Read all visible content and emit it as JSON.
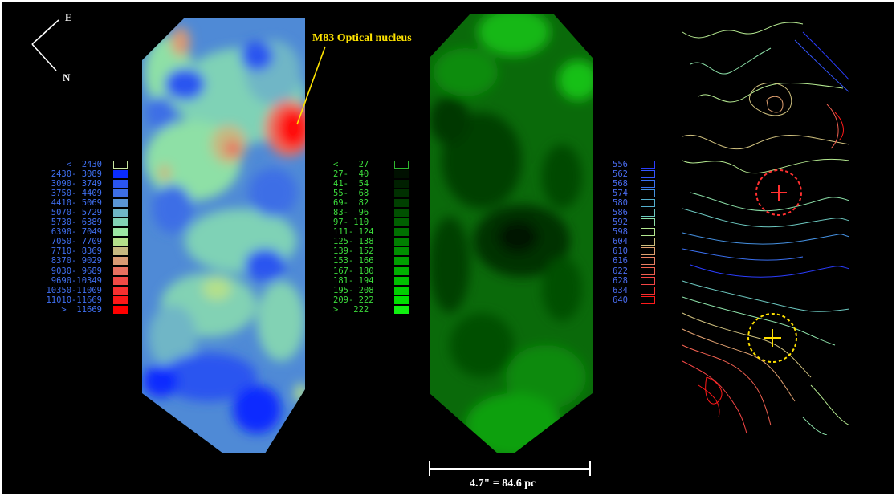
{
  "annotation": "M83 Optical nucleus",
  "compass": {
    "east": "E",
    "north": "N"
  },
  "scalebar": {
    "label": "4.7\" = 84.6 pc"
  },
  "velocity_legend": [
    {
      "label": "<  2430",
      "color": "#000000",
      "border": "#c8e6a0"
    },
    {
      "label": "2430- 3089",
      "color": "#0a2cff"
    },
    {
      "label": "3090- 3749",
      "color": "#2a55f0"
    },
    {
      "label": "3750- 4409",
      "color": "#3d6ee6"
    },
    {
      "label": "4410- 5069",
      "color": "#5a96d6"
    },
    {
      "label": "5070- 5729",
      "color": "#6fb6c6"
    },
    {
      "label": "5730- 6389",
      "color": "#82d2b4"
    },
    {
      "label": "6390- 7049",
      "color": "#9be6a2"
    },
    {
      "label": "7050- 7709",
      "color": "#b4e08a"
    },
    {
      "label": "7710- 8369",
      "color": "#c6b880"
    },
    {
      "label": "8370- 9029",
      "color": "#d99a74"
    },
    {
      "label": "9030- 9689",
      "color": "#e87060"
    },
    {
      "label": "9690-10349",
      "color": "#f04a46"
    },
    {
      "label": "10350-11009",
      "color": "#f83030"
    },
    {
      "label": "11010-11669",
      "color": "#fc1818"
    },
    {
      "label": ">  11669",
      "color": "#ff0000"
    }
  ],
  "intensity_legend": [
    {
      "label": "<    27",
      "color": "#000000",
      "border": "#2eb82e"
    },
    {
      "label": "27-  40",
      "color": "#001000"
    },
    {
      "label": "41-  54",
      "color": "#002000"
    },
    {
      "label": "55-  68",
      "color": "#003000"
    },
    {
      "label": "69-  82",
      "color": "#004000"
    },
    {
      "label": "83-  96",
      "color": "#005000"
    },
    {
      "label": "97- 110",
      "color": "#006000"
    },
    {
      "label": "111- 124",
      "color": "#007000"
    },
    {
      "label": "125- 138",
      "color": "#008000"
    },
    {
      "label": "139- 152",
      "color": "#009000"
    },
    {
      "label": "153- 166",
      "color": "#00a000"
    },
    {
      "label": "167- 180",
      "color": "#00b000"
    },
    {
      "label": "181- 194",
      "color": "#00c000"
    },
    {
      "label": "195- 208",
      "color": "#00d000"
    },
    {
      "label": "209- 222",
      "color": "#00e000"
    },
    {
      "label": ">   222",
      "color": "#10f010"
    }
  ],
  "contour_legend": [
    {
      "label": "556",
      "color": "#2b3dff"
    },
    {
      "label": "562",
      "color": "#3355ff"
    },
    {
      "label": "568",
      "color": "#3a70f0"
    },
    {
      "label": "574",
      "color": "#4590e0"
    },
    {
      "label": "580",
      "color": "#55b0d0"
    },
    {
      "label": "586",
      "color": "#6cc8c0"
    },
    {
      "label": "592",
      "color": "#8ce0a8"
    },
    {
      "label": "598",
      "color": "#b4e890"
    },
    {
      "label": "604",
      "color": "#cfc07e"
    },
    {
      "label": "610",
      "color": "#e0a070"
    },
    {
      "label": "616",
      "color": "#ea8064"
    },
    {
      "label": "622",
      "color": "#f06050"
    },
    {
      "label": "628",
      "color": "#f54545"
    },
    {
      "label": "634",
      "color": "#fa3030"
    },
    {
      "label": "640",
      "color": "#ff1a1a"
    }
  ]
}
